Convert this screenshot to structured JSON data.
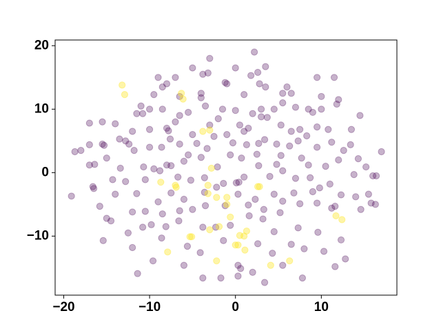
{
  "chart_data": {
    "type": "scatter",
    "xlim": [
      -21.0,
      18.8
    ],
    "ylim": [
      -19.3,
      20.9
    ],
    "xticks": [
      {
        "value": -20,
        "label": "−20"
      },
      {
        "value": -10,
        "label": "−10"
      },
      0,
      10
    ],
    "yticks": [
      {
        "value": -10,
        "label": "−10"
      },
      0,
      10,
      20
    ],
    "grid": false,
    "series": [
      {
        "color": "#440154",
        "opacity": 0.3,
        "x": [
          2.2,
          -3,
          -5,
          -3.8,
          -3.2,
          0,
          2.6,
          3.5,
          1.8,
          -9,
          -7,
          -8,
          -8.5,
          -9.5,
          -6.5,
          -4,
          -1,
          -1.2,
          1,
          2.8,
          3.5,
          6.5,
          6,
          5.5,
          9.5,
          11.5,
          10,
          12,
          11.8,
          8.5,
          9,
          10,
          7,
          5.5,
          4.5,
          3,
          2,
          0,
          -1.5,
          -3.5,
          -4,
          -5.5,
          -8.5,
          -10,
          -11,
          -11.5,
          -10.8,
          -15.5,
          -17,
          -14,
          -12,
          -10,
          -8,
          -7.8,
          -7,
          -6.5,
          -5,
          -3,
          -2,
          0.5,
          1,
          1.5,
          3,
          3.7,
          5.3,
          6.5,
          7.5,
          9.5,
          10.8,
          13.5,
          14.5,
          -18,
          -18.7,
          -17,
          -15.5,
          -15.3,
          -13.5,
          -12.4,
          -12.8,
          -11.8,
          -10,
          -8.6,
          -7.6,
          -6.5,
          -5.5,
          -4.5,
          -3.3,
          -2.5,
          -1,
          -0.3,
          1.3,
          2.7,
          3.4,
          4.8,
          6.3,
          7.3,
          8.3,
          9.5,
          11.2,
          12.6,
          13.4,
          14.3,
          -17,
          -16.4,
          -15,
          -13.4,
          -10.7,
          -9.5,
          -8,
          -7.5,
          -6,
          -4,
          -2.1,
          -0.6,
          0.7,
          2.5,
          2.7,
          4.8,
          5.3,
          7.7,
          8.5,
          10.5,
          12,
          15.2,
          16,
          16.4,
          13.8,
          11,
          8.7,
          7,
          5.5,
          4,
          1,
          0.4,
          0.1,
          -1.4,
          -3.6,
          -5.2,
          -6.7,
          -8.8,
          -10.5,
          -12.8,
          -14.3,
          -16.6,
          -16.5,
          -14,
          -11.5,
          -9,
          -7.5,
          -6,
          -3.6,
          -2.2,
          0.3,
          2.3,
          4.5,
          5.5,
          6.8,
          9,
          9.8,
          12.3,
          14,
          15.5,
          15.8,
          16.3,
          -19.1,
          -15.8,
          -15,
          -14.5,
          -12,
          -10.5,
          -8.5,
          -6.5,
          -5,
          -3.5,
          -1.2,
          1.5,
          3.3,
          5.2,
          7.5,
          9.5,
          11.2,
          11.6,
          14.6,
          -15.4,
          -12.5,
          -10.8,
          -9.8,
          -8.1,
          -6.6,
          -3.8,
          -2.3,
          -0.6,
          1.6,
          3.2,
          4.5,
          7.3,
          9.6,
          12.3,
          -12,
          -8.6,
          -5.6,
          -1.4,
          2.6,
          4.3,
          6.5,
          8,
          10.3,
          11.6,
          12.8,
          -11.4,
          -9.6,
          -6,
          -4.1,
          0.3,
          0.6,
          2,
          3.4,
          -3.8,
          -1.7,
          0.3,
          7.8,
          5.5,
          17
        ],
        "y": [
          19,
          18,
          16.5,
          15.5,
          15.7,
          16.5,
          15.8,
          16.7,
          15.3,
          15,
          15,
          14,
          13.5,
          12.3,
          12,
          12.5,
          14,
          14.2,
          12.3,
          14,
          13.5,
          12.5,
          13.5,
          12.5,
          15,
          15,
          12,
          11.5,
          10.8,
          10,
          9.5,
          10,
          10.3,
          11,
          10,
          10,
          9.3,
          9.8,
          10,
          10.5,
          11.8,
          9.5,
          10,
          10,
          10.5,
          9.3,
          9.3,
          8,
          7.8,
          7.7,
          6.5,
          6.8,
          7,
          6.6,
          8,
          9,
          6,
          7.5,
          8.5,
          7.5,
          6.5,
          7,
          8.8,
          8.7,
          7.5,
          6.5,
          6.8,
          7.2,
          6.8,
          6.8,
          9,
          3.5,
          3.3,
          4.4,
          4.5,
          4.3,
          5.3,
          4.5,
          5,
          3.5,
          4,
          4,
          5.3,
          4.5,
          2.8,
          4.6,
          3.8,
          5.7,
          6,
          4.7,
          4.4,
          4.6,
          5.2,
          4.5,
          4.2,
          5,
          5.8,
          4,
          4.8,
          3.5,
          4.4,
          2.2,
          1.2,
          1.3,
          2.3,
          0.7,
          0.9,
          0.6,
          1.2,
          1.1,
          1.8,
          2.4,
          0.9,
          2.8,
          2.3,
          2.9,
          1.1,
          1.3,
          2.7,
          2.3,
          1.2,
          1,
          2,
          0.9,
          -0.5,
          -0.5,
          -0.3,
          -1.8,
          -0.8,
          -0.9,
          0.3,
          -0.6,
          -0.7,
          -1.5,
          -1.6,
          -1.7,
          -0.8,
          -1.2,
          -0.7,
          0.3,
          -1.1,
          -1.4,
          -1.1,
          -2.2,
          -2.5,
          -3.4,
          -3.3,
          -4.6,
          -3.2,
          -4.2,
          -3.1,
          -2.3,
          -3.4,
          -4.2,
          -3.4,
          -4.5,
          -3.2,
          -3,
          -2.4,
          -3.5,
          -3.8,
          -3.4,
          -4.8,
          -5,
          -3.7,
          -5.3,
          -7.2,
          -7.6,
          -6.2,
          -6.1,
          -6.5,
          -6,
          -5.8,
          -5.2,
          -5.2,
          -5.1,
          -5.8,
          -6.3,
          -4.9,
          -4.8,
          -5.6,
          -5.3,
          -5.8,
          -10.7,
          -9.5,
          -8.6,
          -8.2,
          -8.5,
          -7.6,
          -8.6,
          -8.6,
          -8.3,
          -6.8,
          -7.3,
          -9.3,
          -8.7,
          -9.4,
          -10.6,
          -11.8,
          -10.3,
          -11.6,
          -10.7,
          -11.2,
          -12.7,
          -11.3,
          -12,
          -12.4,
          -14.8,
          -13.6,
          -15.9,
          -13.9,
          -14.6,
          -12.6,
          -14.6,
          -15.1,
          -15.7,
          -17.3,
          -16.6,
          -16.6,
          -16.3,
          -16.6,
          -14.6,
          3.3
        ]
      },
      {
        "color": "#fde725",
        "opacity": 0.4,
        "x": [
          -13.2,
          -12.9,
          -6.3,
          -6.1,
          -8.7,
          -7.0,
          -6.9,
          -5.3,
          -5.1,
          -7.9,
          -3.8,
          -3.0,
          -2.8,
          -3.2,
          -3.2,
          -2.2,
          -1.0,
          -1.0,
          -0.6,
          -1.9,
          -3.0,
          -2.2,
          0,
          0.3,
          1.3,
          1.0,
          1.1,
          2.6,
          2.8,
          4.1,
          6.3,
          11.7,
          12.4,
          0.5
        ],
        "y": [
          13.8,
          12.3,
          12.5,
          11.6,
          -1.5,
          -2.0,
          -2.3,
          -10.1,
          -10.1,
          -12.5,
          6.5,
          6.7,
          0.7,
          -2.0,
          -3.3,
          -3.9,
          -3.9,
          -5.0,
          -7.0,
          -8.5,
          -9.0,
          -13.9,
          -11.4,
          -11.4,
          -9.2,
          -10.0,
          -12.2,
          -2.2,
          -2.2,
          -14.6,
          -13.9,
          -6.8,
          -7.4,
          -9.9
        ]
      }
    ]
  }
}
